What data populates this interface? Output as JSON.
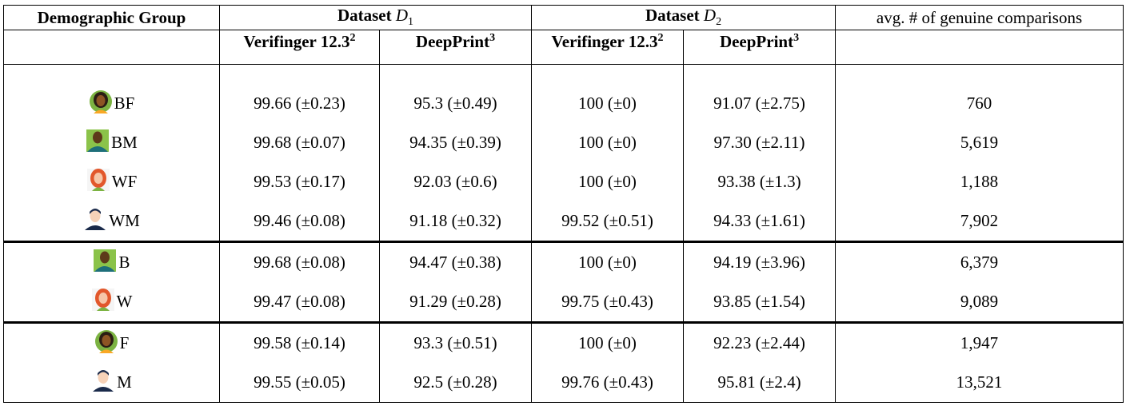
{
  "header": {
    "columns": [
      {
        "text": "Demographic Group"
      },
      {
        "text": "Dataset ",
        "var": "D",
        "sub": "1"
      },
      {
        "text": "Dataset ",
        "var": "D",
        "sub": "2"
      },
      {
        "text": "avg. # of genuine comparisons"
      }
    ],
    "subcolumns": [
      {
        "text": "Verifinger 12.3",
        "sup": "2"
      },
      {
        "text": "DeepPrint",
        "sup": "3"
      },
      {
        "text": "Verifinger 12.3",
        "sup": "2"
      },
      {
        "text": "DeepPrint",
        "sup": "3"
      }
    ]
  },
  "rows": [
    [
      "BF",
      "99.66 (±0.23)",
      "95.3 (±0.49)",
      "100 (±0)",
      "91.07 (±2.75)",
      "760"
    ],
    [
      "BM",
      "99.68 (±0.07)",
      "94.35 (±0.39)",
      "100 (±0)",
      "97.30 (±2.11)",
      "5,619"
    ],
    [
      "WF",
      "99.53 (±0.17)",
      "92.03 (±0.6)",
      "100 (±0)",
      "93.38 (±1.3)",
      "1,188"
    ],
    [
      "WM",
      "99.46 (±0.08)",
      "91.18 (±0.32)",
      "99.52 (±0.51)",
      "94.33 (±1.61)",
      "7,902"
    ],
    [
      "B",
      "99.68 (±0.08)",
      "94.47 (±0.38)",
      "100 (±0)",
      "94.19 (±3.96)",
      "6,379"
    ],
    [
      "W",
      "99.47 (±0.08)",
      "91.29 (±0.28)",
      "99.75 (±0.43)",
      "93.85 (±1.54)",
      "9,089"
    ],
    [
      "F",
      "99.58 (±0.14)",
      "93.3 (±0.51)",
      "100 (±0)",
      "92.23 (±2.44)",
      "1,947"
    ],
    [
      "M",
      "99.55 (±0.05)",
      "92.5 (±0.28)",
      "99.76 (±0.43)",
      "95.81 (±2.4)",
      "13,521"
    ]
  ]
}
